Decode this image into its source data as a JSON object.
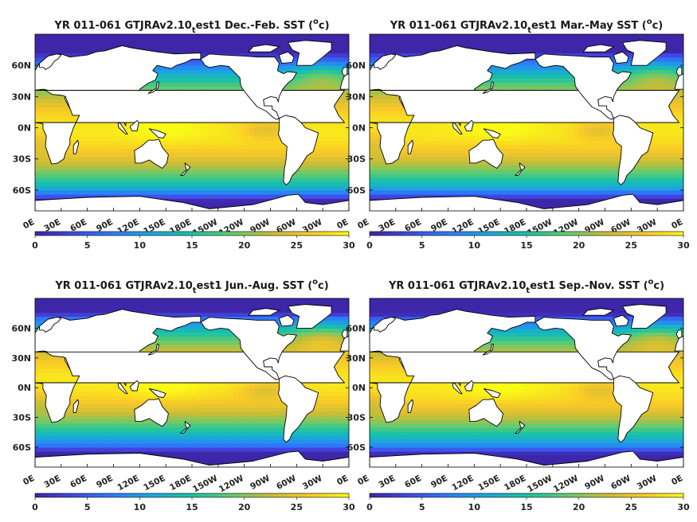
{
  "figure": {
    "background": "#ffffff"
  },
  "colormap": {
    "name": "parula-like",
    "stops": [
      "#3e26a8",
      "#4249e6",
      "#2c7dfd",
      "#1aa8d9",
      "#19c3a5",
      "#63cb6f",
      "#c7bd37",
      "#f9c928",
      "#f9fb15"
    ]
  },
  "map_style": {
    "land_color": "#ffffff",
    "coast_color": "#000000",
    "frame_color": "#000000"
  },
  "chart_data": [
    {
      "type": "heatmap",
      "title_main": "YR 011-061 GTJRAv2.10",
      "title_sub": "t",
      "title_rest": "est1 Dec.-Feb. SST (",
      "title_sup": "o",
      "title_end": "c)",
      "season": "DJF",
      "x_ticks": [
        "0E",
        "30E",
        "60E",
        "90E",
        "120E",
        "150E",
        "180E",
        "150W",
        "120W",
        "90W",
        "60W",
        "30W",
        "0E"
      ],
      "y_ticks": [
        "60N",
        "30N",
        "0N",
        "30S",
        "60S"
      ],
      "xlim_deg_east": [
        0,
        360
      ],
      "ylim_deg": [
        -80,
        90
      ],
      "colorbar": {
        "ticks": [
          "0",
          "5",
          "10",
          "15",
          "20",
          "25",
          "30"
        ],
        "range": [
          0,
          30
        ],
        "placement": "bottom"
      }
    },
    {
      "type": "heatmap",
      "title_main": "YR 011-061 GTJRAv2.10",
      "title_sub": "t",
      "title_rest": "est1 Mar.-May SST (",
      "title_sup": "o",
      "title_end": "c)",
      "season": "MAM",
      "x_ticks": [
        "0E",
        "30E",
        "60E",
        "90E",
        "120E",
        "150E",
        "180E",
        "150W",
        "120W",
        "90W",
        "60W",
        "30W",
        "0E"
      ],
      "y_ticks": [
        "60N",
        "30N",
        "0N",
        "30S",
        "60S"
      ],
      "xlim_deg_east": [
        0,
        360
      ],
      "ylim_deg": [
        -80,
        90
      ],
      "colorbar": {
        "ticks": [
          "0",
          "5",
          "10",
          "15",
          "20",
          "25",
          "30"
        ],
        "range": [
          0,
          30
        ],
        "placement": "bottom"
      }
    },
    {
      "type": "heatmap",
      "title_main": "YR 011-061 GTJRAv2.10",
      "title_sub": "t",
      "title_rest": "est1 Jun.-Aug. SST (",
      "title_sup": "o",
      "title_end": "c)",
      "season": "JJA",
      "x_ticks": [
        "0E",
        "30E",
        "60E",
        "90E",
        "120E",
        "150E",
        "180E",
        "150W",
        "120W",
        "90W",
        "60W",
        "30W",
        "0E"
      ],
      "y_ticks": [
        "60N",
        "30N",
        "0N",
        "30S",
        "60S"
      ],
      "xlim_deg_east": [
        0,
        360
      ],
      "ylim_deg": [
        -80,
        90
      ],
      "colorbar": {
        "ticks": [
          "0",
          "5",
          "10",
          "15",
          "20",
          "25",
          "30"
        ],
        "range": [
          0,
          30
        ],
        "placement": "bottom"
      }
    },
    {
      "type": "heatmap",
      "title_main": "YR 011-061 GTJRAv2.10",
      "title_sub": "t",
      "title_rest": "est1 Sep.-Nov. SST (",
      "title_sup": "o",
      "title_end": "c)",
      "season": "SON",
      "x_ticks": [
        "0E",
        "30E",
        "60E",
        "90E",
        "120E",
        "150E",
        "180E",
        "150W",
        "120W",
        "90W",
        "60W",
        "30W",
        "0E"
      ],
      "y_ticks": [
        "60N",
        "30N",
        "0N",
        "30S",
        "60S"
      ],
      "xlim_deg_east": [
        0,
        360
      ],
      "ylim_deg": [
        -80,
        90
      ],
      "colorbar": {
        "ticks": [
          "0",
          "5",
          "10",
          "15",
          "20",
          "25",
          "30"
        ],
        "range": [
          0,
          30
        ],
        "placement": "bottom"
      }
    }
  ]
}
